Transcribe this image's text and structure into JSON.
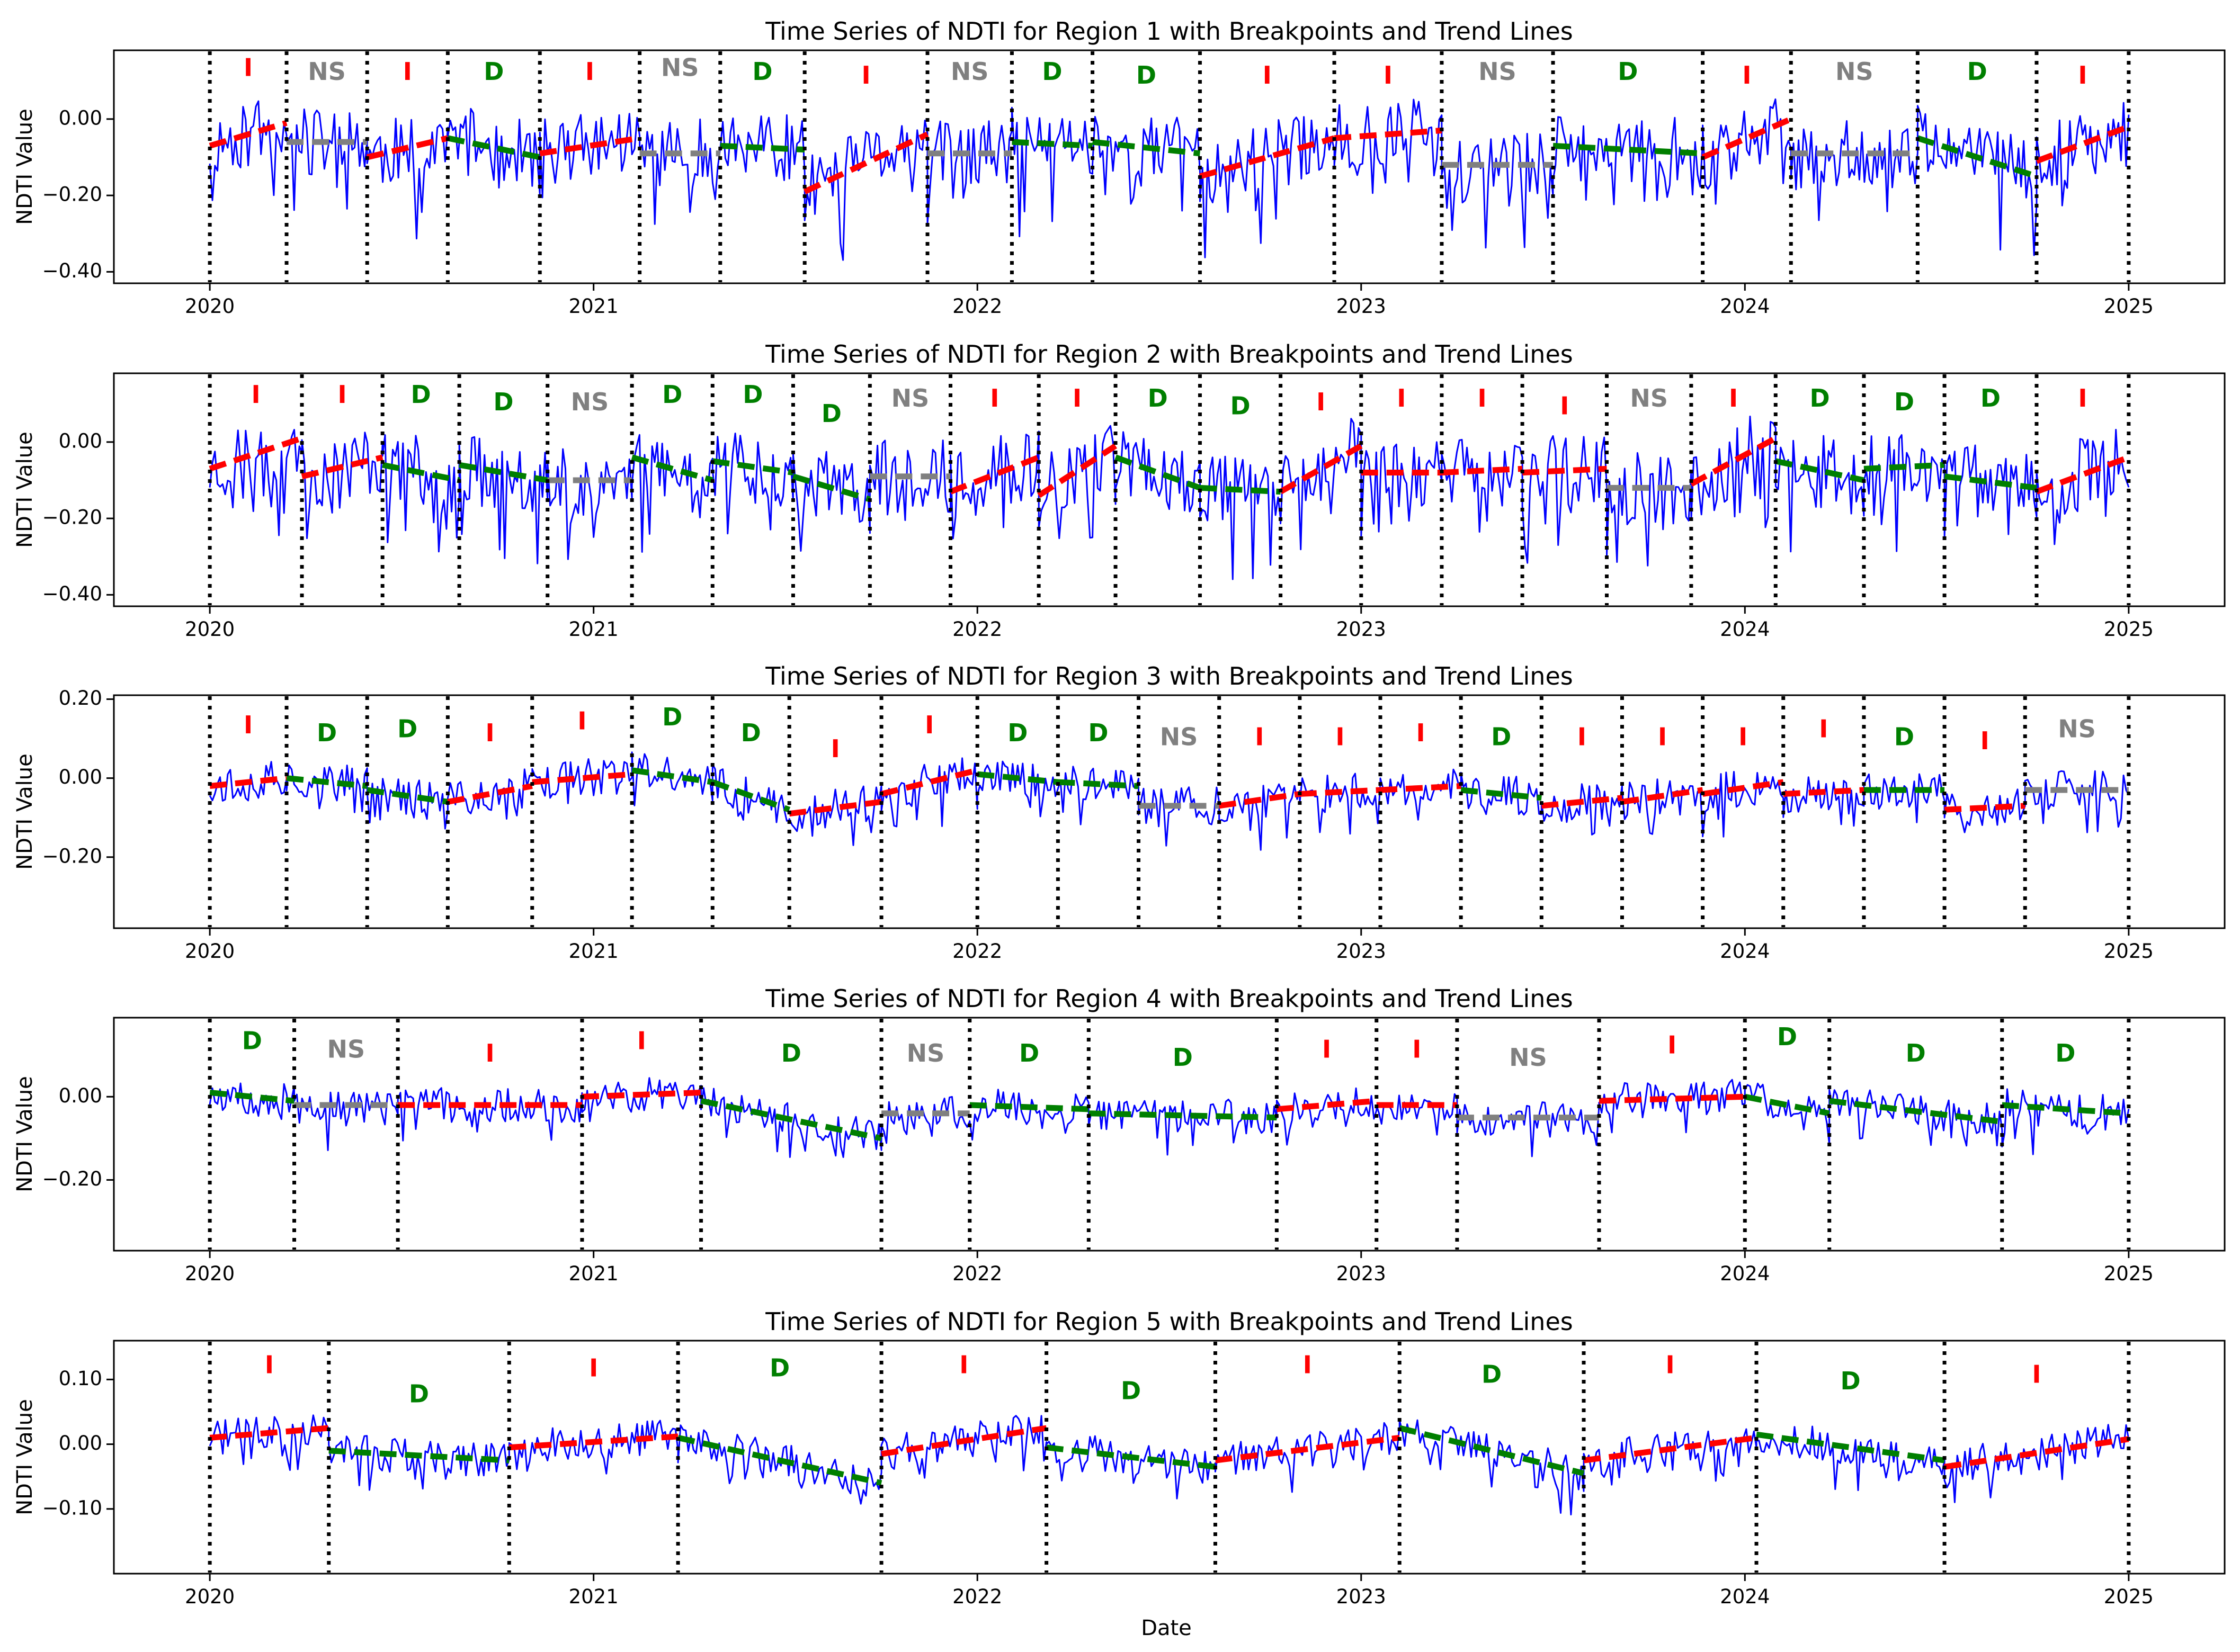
{
  "colors": {
    "series": "#0000ff",
    "increasing": "#ff0000",
    "decreasing": "#007f00",
    "not_significant": "#808080",
    "breakpoint": "#000000",
    "axes": "#000000",
    "background": "#ffffff"
  },
  "figure": {
    "xlabel": "Date",
    "xticks": [
      {
        "value": 2020,
        "label": "2020"
      },
      {
        "value": 2021,
        "label": "2021"
      },
      {
        "value": 2022,
        "label": "2022"
      },
      {
        "value": 2023,
        "label": "2023"
      },
      {
        "value": 2024,
        "label": "2024"
      },
      {
        "value": 2025,
        "label": "2025"
      }
    ]
  },
  "chart_data": [
    {
      "type": "line",
      "title": "Time Series of NDTI for Region 1 with Breakpoints and Trend Lines",
      "ylabel": "NDTI Value",
      "xlim": [
        2019.75,
        2025.25
      ],
      "ylim": [
        -0.43,
        0.18
      ],
      "yticks": [
        {
          "value": 0.0,
          "label": "0.00"
        },
        {
          "value": -0.2,
          "label": "−0.20"
        },
        {
          "value": -0.4,
          "label": "−0.40"
        }
      ],
      "series": {
        "seed": 11,
        "y_mean": -0.08,
        "amplitude": 0.15
      },
      "breakpoints": [
        2020.0,
        2020.2,
        2020.41,
        2020.62,
        2020.86,
        2021.12,
        2021.33,
        2021.55,
        2021.87,
        2022.09,
        2022.3,
        2022.58,
        2022.93,
        2023.21,
        2023.5,
        2023.89,
        2024.12,
        2024.45,
        2024.76,
        2025.0
      ],
      "segments": [
        {
          "label": "I",
          "trend": "I",
          "y_start": -0.07,
          "y_end": -0.01,
          "label_y": 0.13
        },
        {
          "label": "NS",
          "trend": "NS",
          "y_start": -0.06,
          "y_end": -0.06,
          "label_y": 0.12
        },
        {
          "label": "I",
          "trend": "I",
          "y_start": -0.1,
          "y_end": -0.05,
          "label_y": 0.12
        },
        {
          "label": "D",
          "trend": "D",
          "y_start": -0.05,
          "y_end": -0.1,
          "label_y": 0.12
        },
        {
          "label": "I",
          "trend": "I",
          "y_start": -0.09,
          "y_end": -0.05,
          "label_y": 0.12
        },
        {
          "label": "NS",
          "trend": "NS",
          "y_start": -0.09,
          "y_end": -0.09,
          "label_y": 0.13
        },
        {
          "label": "D",
          "trend": "D",
          "y_start": -0.07,
          "y_end": -0.08,
          "label_y": 0.12
        },
        {
          "label": "I",
          "trend": "I",
          "y_start": -0.19,
          "y_end": -0.04,
          "label_y": 0.11
        },
        {
          "label": "NS",
          "trend": "NS",
          "y_start": -0.09,
          "y_end": -0.09,
          "label_y": 0.12
        },
        {
          "label": "D",
          "trend": "D",
          "y_start": -0.06,
          "y_end": -0.07,
          "label_y": 0.12
        },
        {
          "label": "D",
          "trend": "D",
          "y_start": -0.06,
          "y_end": -0.09,
          "label_y": 0.11
        },
        {
          "label": "I",
          "trend": "I",
          "y_start": -0.15,
          "y_end": -0.05,
          "label_y": 0.11
        },
        {
          "label": "I",
          "trend": "I",
          "y_start": -0.05,
          "y_end": -0.03,
          "label_y": 0.11
        },
        {
          "label": "NS",
          "trend": "NS",
          "y_start": -0.12,
          "y_end": -0.12,
          "label_y": 0.12
        },
        {
          "label": "D",
          "trend": "D",
          "y_start": -0.07,
          "y_end": -0.09,
          "label_y": 0.12
        },
        {
          "label": "I",
          "trend": "I",
          "y_start": -0.1,
          "y_end": 0.0,
          "label_y": 0.11
        },
        {
          "label": "NS",
          "trend": "NS",
          "y_start": -0.09,
          "y_end": -0.09,
          "label_y": 0.12
        },
        {
          "label": "D",
          "trend": "D",
          "y_start": -0.05,
          "y_end": -0.15,
          "label_y": 0.12
        },
        {
          "label": "I",
          "trend": "I",
          "y_start": -0.11,
          "y_end": -0.02,
          "label_y": 0.11
        }
      ]
    },
    {
      "type": "line",
      "title": "Time Series of NDTI for Region 2 with Breakpoints and Trend Lines",
      "ylabel": "NDTI Value",
      "xlim": [
        2019.75,
        2025.25
      ],
      "ylim": [
        -0.43,
        0.18
      ],
      "yticks": [
        {
          "value": 0.0,
          "label": "0.00"
        },
        {
          "value": -0.2,
          "label": "−0.20"
        },
        {
          "value": -0.4,
          "label": "−0.40"
        }
      ],
      "series": {
        "seed": 23,
        "y_mean": -0.08,
        "amplitude": 0.16
      },
      "breakpoints": [
        2020.0,
        2020.24,
        2020.45,
        2020.65,
        2020.88,
        2021.1,
        2021.31,
        2021.52,
        2021.72,
        2021.93,
        2022.16,
        2022.36,
        2022.58,
        2022.79,
        2023.0,
        2023.21,
        2023.42,
        2023.64,
        2023.86,
        2024.08,
        2024.31,
        2024.52,
        2024.76,
        2025.0
      ],
      "segments": [
        {
          "label": "I",
          "trend": "I",
          "y_start": -0.07,
          "y_end": 0.01,
          "label_y": 0.12
        },
        {
          "label": "I",
          "trend": "I",
          "y_start": -0.09,
          "y_end": -0.04,
          "label_y": 0.12
        },
        {
          "label": "D",
          "trend": "D",
          "y_start": -0.06,
          "y_end": -0.1,
          "label_y": 0.12
        },
        {
          "label": "D",
          "trend": "D",
          "y_start": -0.06,
          "y_end": -0.1,
          "label_y": 0.1
        },
        {
          "label": "NS",
          "trend": "NS",
          "y_start": -0.1,
          "y_end": -0.1,
          "label_y": 0.1
        },
        {
          "label": "D",
          "trend": "D",
          "y_start": -0.04,
          "y_end": -0.1,
          "label_y": 0.12
        },
        {
          "label": "D",
          "trend": "D",
          "y_start": -0.05,
          "y_end": -0.08,
          "label_y": 0.12
        },
        {
          "label": "D",
          "trend": "D",
          "y_start": -0.09,
          "y_end": -0.15,
          "label_y": 0.07
        },
        {
          "label": "NS",
          "trend": "NS",
          "y_start": -0.09,
          "y_end": -0.09,
          "label_y": 0.11
        },
        {
          "label": "I",
          "trend": "I",
          "y_start": -0.13,
          "y_end": -0.04,
          "label_y": 0.11
        },
        {
          "label": "I",
          "trend": "I",
          "y_start": -0.14,
          "y_end": -0.01,
          "label_y": 0.11
        },
        {
          "label": "D",
          "trend": "D",
          "y_start": -0.04,
          "y_end": -0.12,
          "label_y": 0.11
        },
        {
          "label": "D",
          "trend": "D",
          "y_start": -0.12,
          "y_end": -0.13,
          "label_y": 0.09
        },
        {
          "label": "I",
          "trend": "I",
          "y_start": -0.13,
          "y_end": -0.01,
          "label_y": 0.1
        },
        {
          "label": "I",
          "trend": "I",
          "y_start": -0.08,
          "y_end": -0.08,
          "label_y": 0.11
        },
        {
          "label": "I",
          "trend": "I",
          "y_start": -0.08,
          "y_end": -0.07,
          "label_y": 0.11
        },
        {
          "label": "I",
          "trend": "I",
          "y_start": -0.08,
          "y_end": -0.07,
          "label_y": 0.09
        },
        {
          "label": "NS",
          "trend": "NS",
          "y_start": -0.12,
          "y_end": -0.12,
          "label_y": 0.11
        },
        {
          "label": "I",
          "trend": "I",
          "y_start": -0.11,
          "y_end": 0.01,
          "label_y": 0.11
        },
        {
          "label": "D",
          "trend": "D",
          "y_start": -0.05,
          "y_end": -0.1,
          "label_y": 0.11
        },
        {
          "label": "D",
          "trend": "D",
          "y_start": -0.07,
          "y_end": -0.06,
          "label_y": 0.1
        },
        {
          "label": "D",
          "trend": "D",
          "y_start": -0.09,
          "y_end": -0.12,
          "label_y": 0.11
        },
        {
          "label": "I",
          "trend": "I",
          "y_start": -0.13,
          "y_end": -0.04,
          "label_y": 0.11
        }
      ]
    },
    {
      "type": "line",
      "title": "Time Series of NDTI for Region 3 with Breakpoints and Trend Lines",
      "ylabel": "NDTI Value",
      "xlim": [
        2019.75,
        2025.25
      ],
      "ylim": [
        -0.38,
        0.21
      ],
      "yticks": [
        {
          "value": 0.2,
          "label": "0.20"
        },
        {
          "value": 0.0,
          "label": "0.00"
        },
        {
          "value": -0.2,
          "label": "−0.20"
        }
      ],
      "series": {
        "seed": 37,
        "y_mean": -0.03,
        "amplitude": 0.08
      },
      "breakpoints": [
        2020.0,
        2020.2,
        2020.41,
        2020.62,
        2020.84,
        2021.1,
        2021.31,
        2021.51,
        2021.75,
        2022.0,
        2022.21,
        2022.42,
        2022.63,
        2022.84,
        2023.05,
        2023.26,
        2023.47,
        2023.68,
        2023.89,
        2024.1,
        2024.31,
        2024.52,
        2024.73,
        2025.0
      ],
      "segments": [
        {
          "label": "I",
          "trend": "I",
          "y_start": -0.02,
          "y_end": 0.0,
          "label_y": 0.13
        },
        {
          "label": "D",
          "trend": "D",
          "y_start": 0.0,
          "y_end": -0.02,
          "label_y": 0.11
        },
        {
          "label": "D",
          "trend": "D",
          "y_start": -0.03,
          "y_end": -0.06,
          "label_y": 0.12
        },
        {
          "label": "I",
          "trend": "I",
          "y_start": -0.06,
          "y_end": -0.02,
          "label_y": 0.11
        },
        {
          "label": "I",
          "trend": "I",
          "y_start": -0.01,
          "y_end": 0.01,
          "label_y": 0.14
        },
        {
          "label": "D",
          "trend": "D",
          "y_start": 0.02,
          "y_end": -0.01,
          "label_y": 0.15
        },
        {
          "label": "D",
          "trend": "D",
          "y_start": -0.01,
          "y_end": -0.08,
          "label_y": 0.11
        },
        {
          "label": "I",
          "trend": "I",
          "y_start": -0.09,
          "y_end": -0.06,
          "label_y": 0.07
        },
        {
          "label": "I",
          "trend": "I",
          "y_start": -0.04,
          "y_end": 0.02,
          "label_y": 0.13
        },
        {
          "label": "D",
          "trend": "D",
          "y_start": 0.01,
          "y_end": -0.01,
          "label_y": 0.11
        },
        {
          "label": "D",
          "trend": "D",
          "y_start": -0.01,
          "y_end": -0.02,
          "label_y": 0.11
        },
        {
          "label": "NS",
          "trend": "NS",
          "y_start": -0.07,
          "y_end": -0.07,
          "label_y": 0.1
        },
        {
          "label": "I",
          "trend": "I",
          "y_start": -0.07,
          "y_end": -0.04,
          "label_y": 0.1
        },
        {
          "label": "I",
          "trend": "I",
          "y_start": -0.04,
          "y_end": -0.03,
          "label_y": 0.1
        },
        {
          "label": "I",
          "trend": "I",
          "y_start": -0.03,
          "y_end": -0.02,
          "label_y": 0.11
        },
        {
          "label": "D",
          "trend": "D",
          "y_start": -0.03,
          "y_end": -0.05,
          "label_y": 0.1
        },
        {
          "label": "I",
          "trend": "I",
          "y_start": -0.07,
          "y_end": -0.05,
          "label_y": 0.1
        },
        {
          "label": "I",
          "trend": "I",
          "y_start": -0.06,
          "y_end": -0.03,
          "label_y": 0.1
        },
        {
          "label": "I",
          "trend": "I",
          "y_start": -0.04,
          "y_end": -0.01,
          "label_y": 0.1
        },
        {
          "label": "I",
          "trend": "I",
          "y_start": -0.04,
          "y_end": -0.03,
          "label_y": 0.12
        },
        {
          "label": "D",
          "trend": "D",
          "y_start": -0.03,
          "y_end": -0.03,
          "label_y": 0.1
        },
        {
          "label": "I",
          "trend": "I",
          "y_start": -0.08,
          "y_end": -0.07,
          "label_y": 0.09
        },
        {
          "label": "NS",
          "trend": "NS",
          "y_start": -0.03,
          "y_end": -0.03,
          "label_y": 0.12
        }
      ]
    },
    {
      "type": "line",
      "title": "Time Series of NDTI for Region 4 with Breakpoints and Trend Lines",
      "ylabel": "NDTI Value",
      "xlim": [
        2019.75,
        2025.25
      ],
      "ylim": [
        -0.37,
        0.19
      ],
      "yticks": [
        {
          "value": 0.0,
          "label": "0.00"
        },
        {
          "value": -0.2,
          "label": "−0.20"
        }
      ],
      "series": {
        "seed": 53,
        "y_mean": -0.02,
        "amplitude": 0.07
      },
      "breakpoints": [
        2020.0,
        2020.22,
        2020.49,
        2020.97,
        2021.28,
        2021.75,
        2021.98,
        2022.29,
        2022.78,
        2023.04,
        2023.25,
        2023.62,
        2024.0,
        2024.22,
        2024.67,
        2025.0
      ],
      "segments": [
        {
          "label": "D",
          "trend": "D",
          "y_start": 0.01,
          "y_end": -0.01,
          "label_y": 0.13
        },
        {
          "label": "NS",
          "trend": "NS",
          "y_start": -0.02,
          "y_end": -0.02,
          "label_y": 0.11
        },
        {
          "label": "I",
          "trend": "I",
          "y_start": -0.02,
          "y_end": -0.02,
          "label_y": 0.1
        },
        {
          "label": "I",
          "trend": "I",
          "y_start": 0.0,
          "y_end": 0.01,
          "label_y": 0.13
        },
        {
          "label": "D",
          "trend": "D",
          "y_start": -0.01,
          "y_end": -0.1,
          "label_y": 0.1
        },
        {
          "label": "NS",
          "trend": "NS",
          "y_start": -0.04,
          "y_end": -0.04,
          "label_y": 0.1
        },
        {
          "label": "D",
          "trend": "D",
          "y_start": -0.02,
          "y_end": -0.03,
          "label_y": 0.1
        },
        {
          "label": "D",
          "trend": "D",
          "y_start": -0.04,
          "y_end": -0.05,
          "label_y": 0.09
        },
        {
          "label": "I",
          "trend": "I",
          "y_start": -0.03,
          "y_end": -0.01,
          "label_y": 0.11
        },
        {
          "label": "I",
          "trend": "I",
          "y_start": -0.02,
          "y_end": -0.02,
          "label_y": 0.11
        },
        {
          "label": "NS",
          "trend": "NS",
          "y_start": -0.05,
          "y_end": -0.05,
          "label_y": 0.09
        },
        {
          "label": "I",
          "trend": "I",
          "y_start": -0.01,
          "y_end": 0.0,
          "label_y": 0.12
        },
        {
          "label": "D",
          "trend": "D",
          "y_start": 0.0,
          "y_end": -0.04,
          "label_y": 0.14
        },
        {
          "label": "D",
          "trend": "D",
          "y_start": -0.01,
          "y_end": -0.06,
          "label_y": 0.1
        },
        {
          "label": "D",
          "trend": "D",
          "y_start": -0.02,
          "y_end": -0.04,
          "label_y": 0.1
        }
      ]
    },
    {
      "type": "line",
      "title": "Time Series of NDTI for Region 5 with Breakpoints and Trend Lines",
      "ylabel": "NDTI Value",
      "xlim": [
        2019.75,
        2025.25
      ],
      "ylim": [
        -0.2,
        0.16
      ],
      "yticks": [
        {
          "value": 0.1,
          "label": "0.10"
        },
        {
          "value": 0.0,
          "label": "0.00"
        },
        {
          "value": -0.1,
          "label": "−0.10"
        }
      ],
      "series": {
        "seed": 71,
        "y_mean": -0.01,
        "amplitude": 0.045
      },
      "breakpoints": [
        2020.0,
        2020.31,
        2020.78,
        2021.22,
        2021.75,
        2022.18,
        2022.62,
        2023.1,
        2023.58,
        2024.03,
        2024.52,
        2025.0
      ],
      "segments": [
        {
          "label": "I",
          "trend": "I",
          "y_start": 0.01,
          "y_end": 0.025,
          "label_y": 0.12
        },
        {
          "label": "D",
          "trend": "D",
          "y_start": -0.01,
          "y_end": -0.025,
          "label_y": 0.075
        },
        {
          "label": "I",
          "trend": "I",
          "y_start": -0.005,
          "y_end": 0.012,
          "label_y": 0.115
        },
        {
          "label": "D",
          "trend": "D",
          "y_start": 0.01,
          "y_end": -0.06,
          "label_y": 0.115
        },
        {
          "label": "I",
          "trend": "I",
          "y_start": -0.015,
          "y_end": 0.025,
          "label_y": 0.12
        },
        {
          "label": "D",
          "trend": "D",
          "y_start": -0.005,
          "y_end": -0.035,
          "label_y": 0.08
        },
        {
          "label": "I",
          "trend": "I",
          "y_start": -0.025,
          "y_end": 0.01,
          "label_y": 0.12
        },
        {
          "label": "D",
          "trend": "D",
          "y_start": 0.025,
          "y_end": -0.045,
          "label_y": 0.105
        },
        {
          "label": "I",
          "trend": "I",
          "y_start": -0.025,
          "y_end": 0.01,
          "label_y": 0.12
        },
        {
          "label": "D",
          "trend": "D",
          "y_start": 0.015,
          "y_end": -0.025,
          "label_y": 0.095
        },
        {
          "label": "I",
          "trend": "I",
          "y_start": -0.035,
          "y_end": 0.008,
          "label_y": 0.105
        }
      ]
    }
  ]
}
